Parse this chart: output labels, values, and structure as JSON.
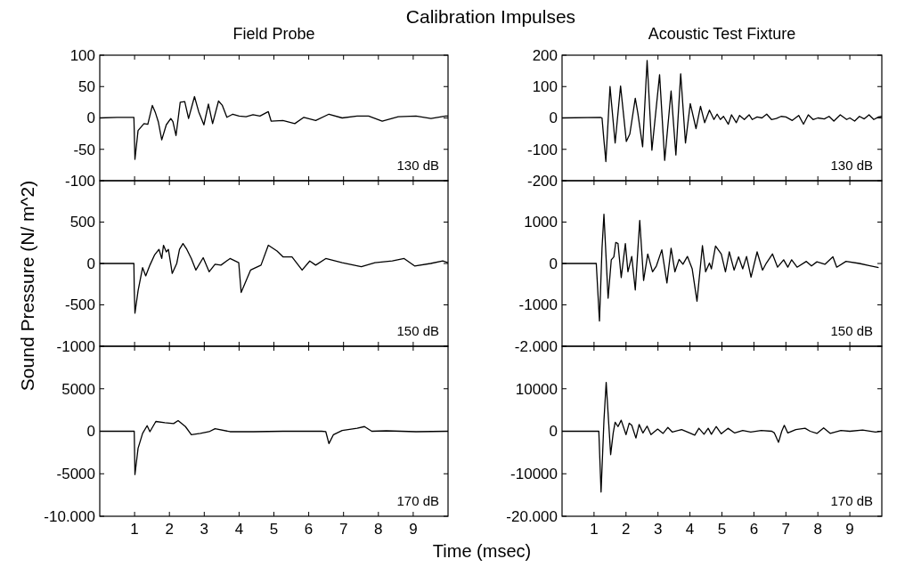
{
  "chart_data": [
    {
      "type": "line",
      "title": "Calibration Impulses",
      "subtitle": "Field Probe",
      "annotations": [
        "130 dB"
      ],
      "x": [
        0,
        0.5,
        0.98,
        0.99,
        1.01,
        1.1,
        1.27,
        1.38,
        1.51,
        1.6,
        1.68,
        1.78,
        1.91,
        2.04,
        2.1,
        2.19,
        2.31,
        2.44,
        2.55,
        2.72,
        2.84,
        2.99,
        3.12,
        3.24,
        3.41,
        3.52,
        3.65,
        3.82,
        4.0,
        4.2,
        4.4,
        4.6,
        4.84,
        4.92,
        5.26,
        5.6,
        5.86,
        6.2,
        6.58,
        6.96,
        7.39,
        7.72,
        8.11,
        8.57,
        9.08,
        9.51,
        9.93,
        10
      ],
      "series": [
        {
          "color": "#000000",
          "values": [
            0,
            1,
            1,
            -20,
            -66,
            -20,
            -9,
            -10,
            20,
            8,
            -6,
            -35,
            -11,
            -1,
            -6,
            -28,
            25,
            26,
            -1,
            34,
            10,
            -11,
            22,
            -9,
            27,
            20,
            1,
            6,
            3,
            2,
            5,
            3,
            10,
            -5,
            -4,
            -9,
            1,
            -4,
            6,
            0,
            3,
            3,
            -5,
            2,
            3,
            -1,
            3,
            3
          ]
        }
      ],
      "xlim": [
        0,
        10
      ],
      "xticks": [
        {
          "value": 1,
          "label": null
        },
        {
          "value": 2,
          "label": null
        },
        {
          "value": 3,
          "label": null
        },
        {
          "value": 4,
          "label": null
        },
        {
          "value": 5,
          "label": null
        },
        {
          "value": 6,
          "label": null
        },
        {
          "value": 7,
          "label": null
        },
        {
          "value": 8,
          "label": null
        },
        {
          "value": 9,
          "label": null
        }
      ],
      "ylim": [
        -100,
        100
      ],
      "yticks": [
        -100,
        -50,
        0,
        50,
        100
      ],
      "tick_labels": "y"
    },
    {
      "type": "line",
      "subtitle": "Acoustic Test Fixture",
      "annotations": [
        "130 dB"
      ],
      "x": [
        0,
        1.2,
        1.25,
        1.3,
        1.37,
        1.5,
        1.66,
        1.83,
        2.01,
        2.12,
        2.29,
        2.37,
        2.52,
        2.66,
        2.81,
        3.05,
        3.21,
        3.41,
        3.56,
        3.71,
        3.86,
        4.01,
        4.19,
        4.33,
        4.46,
        4.61,
        4.75,
        4.85,
        4.95,
        5.05,
        5.2,
        5.3,
        5.45,
        5.55,
        5.7,
        5.85,
        5.95,
        6.1,
        6.25,
        6.4,
        6.55,
        6.7,
        6.85,
        7.0,
        7.2,
        7.4,
        7.55,
        7.7,
        7.85,
        8.0,
        8.2,
        8.35,
        8.5,
        8.7,
        8.9,
        9.0,
        9.15,
        9.3,
        9.45,
        9.6,
        9.75,
        9.9,
        10
      ],
      "series": [
        {
          "color": "#000000",
          "values": [
            0,
            2,
            0,
            -60,
            -139,
            100,
            -80,
            102,
            -75,
            -51,
            63,
            15,
            -92,
            183,
            -103,
            138,
            -135,
            86,
            -118,
            141,
            -80,
            46,
            -34,
            37,
            -15,
            25,
            -5,
            12,
            -5,
            5,
            -20,
            10,
            -15,
            8,
            -5,
            10,
            -5,
            3,
            0,
            12,
            -5,
            -2,
            5,
            3,
            -8,
            8,
            -20,
            10,
            -5,
            0,
            -3,
            5,
            -10,
            10,
            -5,
            0,
            -10,
            5,
            -3,
            10,
            -5,
            3,
            5
          ]
        }
      ],
      "xlim": [
        0,
        10
      ],
      "xticks": [
        {
          "value": 1,
          "label": null
        },
        {
          "value": 2,
          "label": null
        },
        {
          "value": 3,
          "label": null
        },
        {
          "value": 4,
          "label": null
        },
        {
          "value": 5,
          "label": null
        },
        {
          "value": 6,
          "label": null
        },
        {
          "value": 7,
          "label": null
        },
        {
          "value": 8,
          "label": null
        },
        {
          "value": 9,
          "label": null
        }
      ],
      "ylim": [
        -200,
        200
      ],
      "yticks": [
        -200,
        -100,
        0,
        100,
        200
      ],
      "tick_labels": "y"
    },
    {
      "type": "line",
      "ylabel": "Sound Pressure (N/ m^2)",
      "annotations": [
        "150 dB"
      ],
      "x": [
        0,
        0.5,
        0.98,
        0.99,
        1.01,
        1.1,
        1.23,
        1.32,
        1.44,
        1.57,
        1.7,
        1.78,
        1.83,
        1.91,
        1.97,
        2.04,
        2.08,
        2.21,
        2.29,
        2.39,
        2.5,
        2.63,
        2.76,
        2.97,
        3.14,
        3.31,
        3.48,
        3.74,
        3.99,
        4.06,
        4.33,
        4.63,
        4.84,
        5.09,
        5.26,
        5.52,
        5.81,
        6.03,
        6.2,
        6.49,
        6.96,
        7.51,
        7.9,
        8.4,
        8.74,
        9.04,
        9.5,
        9.85,
        10
      ],
      "series": [
        {
          "color": "#000000",
          "values": [
            0,
            0,
            0,
            -300,
            -600,
            -330,
            -50,
            -150,
            -20,
            100,
            170,
            60,
            220,
            140,
            170,
            -10,
            -120,
            0,
            170,
            240,
            170,
            60,
            -80,
            70,
            -100,
            -10,
            -20,
            60,
            10,
            -350,
            -80,
            -20,
            220,
            150,
            80,
            80,
            -80,
            30,
            -20,
            60,
            10,
            -40,
            10,
            30,
            60,
            -30,
            0,
            30,
            10
          ]
        }
      ],
      "xlim": [
        0,
        10
      ],
      "xticks": [
        {
          "value": 1,
          "label": null
        },
        {
          "value": 2,
          "label": null
        },
        {
          "value": 3,
          "label": null
        },
        {
          "value": 4,
          "label": null
        },
        {
          "value": 5,
          "label": null
        },
        {
          "value": 6,
          "label": null
        },
        {
          "value": 7,
          "label": null
        },
        {
          "value": 8,
          "label": null
        },
        {
          "value": 9,
          "label": null
        }
      ],
      "ylim": [
        -1000,
        1000
      ],
      "yticks": [
        -1000,
        -500,
        0,
        500,
        {
          "value": 1000,
          "label": null
        }
      ],
      "tick_labels": "y"
    },
    {
      "type": "line",
      "annotations": [
        "150 dB"
      ],
      "x": [
        0,
        1.07,
        1.17,
        1.25,
        1.31,
        1.44,
        1.54,
        1.62,
        1.68,
        1.75,
        1.85,
        1.98,
        2.06,
        2.18,
        2.29,
        2.43,
        2.55,
        2.68,
        2.83,
        2.95,
        3.12,
        3.28,
        3.41,
        3.53,
        3.66,
        3.78,
        3.92,
        4.07,
        4.22,
        4.39,
        4.49,
        4.61,
        4.67,
        4.8,
        4.98,
        5.11,
        5.23,
        5.38,
        5.52,
        5.65,
        5.77,
        5.91,
        6.1,
        6.27,
        6.39,
        6.58,
        6.74,
        6.93,
        7.06,
        7.18,
        7.35,
        7.64,
        7.8,
        7.97,
        8.22,
        8.47,
        8.59,
        8.88,
        9.3,
        9.6,
        9.9
      ],
      "series": [
        {
          "color": "#000000",
          "values": [
            0,
            0,
            -1390,
            370,
            1190,
            -840,
            90,
            160,
            510,
            480,
            -340,
            480,
            -200,
            170,
            -640,
            1040,
            -410,
            230,
            -200,
            -60,
            330,
            -470,
            370,
            -200,
            100,
            -20,
            170,
            -130,
            -910,
            430,
            -200,
            10,
            -130,
            420,
            230,
            -200,
            280,
            -160,
            160,
            -130,
            170,
            -330,
            280,
            -160,
            10,
            230,
            -90,
            90,
            -90,
            90,
            -90,
            50,
            -60,
            40,
            -20,
            160,
            -90,
            50,
            0,
            -50,
            -100
          ]
        }
      ],
      "xlim": [
        0,
        10
      ],
      "xticks": [
        {
          "value": 1,
          "label": null
        },
        {
          "value": 2,
          "label": null
        },
        {
          "value": 3,
          "label": null
        },
        {
          "value": 4,
          "label": null
        },
        {
          "value": 5,
          "label": null
        },
        {
          "value": 6,
          "label": null
        },
        {
          "value": 7,
          "label": null
        },
        {
          "value": 8,
          "label": null
        },
        {
          "value": 9,
          "label": null
        }
      ],
      "ylim": [
        -2000,
        2000
      ],
      "yticks": [
        {
          "value": -2000,
          "label": "-2.000"
        },
        -1000,
        0,
        1000,
        {
          "value": 2000,
          "label": null
        }
      ],
      "tick_labels": "y"
    },
    {
      "type": "line",
      "xlabel": "Time (msec)",
      "annotations": [
        "170 dB"
      ],
      "x": [
        0,
        0.99,
        1.01,
        1.1,
        1.23,
        1.36,
        1.44,
        1.61,
        1.87,
        2.12,
        2.25,
        2.46,
        2.63,
        2.89,
        3.14,
        3.31,
        3.74,
        4.41,
        5.26,
        6.37,
        6.49,
        6.58,
        6.71,
        6.96,
        7.39,
        7.6,
        7.81,
        8.23,
        9.08,
        10
      ],
      "series": [
        {
          "color": "#000000",
          "values": [
            0,
            0,
            -5100,
            -2000,
            -250,
            650,
            -50,
            1150,
            1000,
            900,
            1250,
            550,
            -400,
            -250,
            -50,
            300,
            -50,
            -50,
            0,
            0,
            -50,
            -1450,
            -400,
            100,
            350,
            550,
            0,
            50,
            -50,
            0
          ]
        }
      ],
      "xlim": [
        0,
        10
      ],
      "xticks": [
        1,
        2,
        3,
        4,
        5,
        6,
        7,
        8,
        9
      ],
      "ylim": [
        -10000,
        10000
      ],
      "yticks": [
        {
          "value": -10000,
          "label": "-10.000"
        },
        -5000,
        0,
        5000,
        {
          "value": 10000,
          "label": null
        }
      ]
    },
    {
      "type": "line",
      "annotations": [
        "170 dB"
      ],
      "x": [
        0,
        1.15,
        1.22,
        1.31,
        1.38,
        1.52,
        1.6,
        1.66,
        1.75,
        1.85,
        2.0,
        2.1,
        2.18,
        2.31,
        2.41,
        2.53,
        2.66,
        2.78,
        2.99,
        3.16,
        3.31,
        3.45,
        3.74,
        3.99,
        4.15,
        4.28,
        4.44,
        4.57,
        4.67,
        4.82,
        4.98,
        5.19,
        5.4,
        5.65,
        5.9,
        6.23,
        6.56,
        6.64,
        6.77,
        6.87,
        6.95,
        7.06,
        7.31,
        7.6,
        7.76,
        7.97,
        8.18,
        8.39,
        8.72,
        9.0,
        9.4,
        9.8,
        10
      ],
      "series": [
        {
          "color": "#000000",
          "values": [
            0,
            0,
            -14300,
            2500,
            11500,
            -5500,
            -400,
            2100,
            1100,
            2600,
            -800,
            1900,
            1400,
            -1600,
            1600,
            -400,
            1200,
            -800,
            500,
            -500,
            900,
            -200,
            400,
            -400,
            -900,
            700,
            -700,
            700,
            -700,
            1100,
            -600,
            700,
            -400,
            200,
            -200,
            200,
            0,
            -400,
            -2600,
            0,
            1400,
            -400,
            400,
            700,
            0,
            -500,
            800,
            -500,
            200,
            0,
            300,
            -200,
            0
          ]
        }
      ],
      "xlim": [
        0,
        10
      ],
      "xticks": [
        1,
        2,
        3,
        4,
        5,
        6,
        7,
        8,
        9
      ],
      "ylim": [
        -20000,
        20000
      ],
      "yticks": [
        {
          "value": -20000,
          "label": "-20.000"
        },
        -10000,
        0,
        10000,
        {
          "value": 20000,
          "label": null
        }
      ]
    }
  ]
}
